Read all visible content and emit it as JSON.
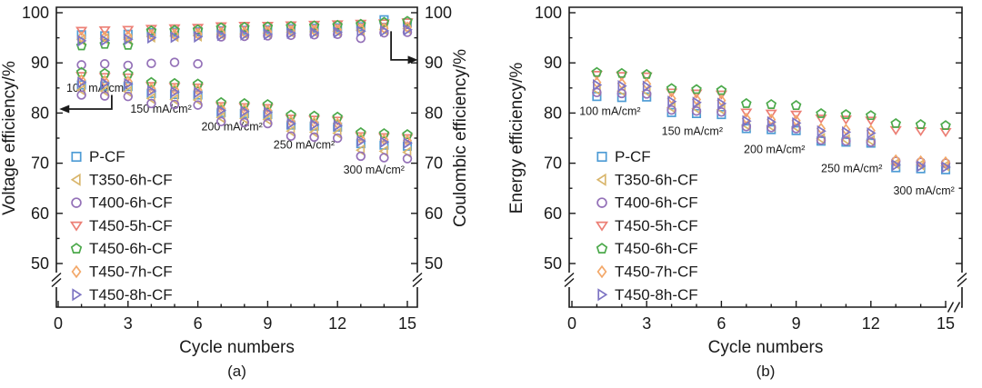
{
  "figure": {
    "background": "#ffffff"
  },
  "chart_data": [
    {
      "type": "scatter",
      "panel": "(a)",
      "xlabel": "Cycle numbers",
      "ylabel_left": "Voltage efficiency/%",
      "ylabel_right": "Coulombic efficiency/%",
      "xlim": [
        0,
        15
      ],
      "ylim": [
        50,
        100
      ],
      "xticks": [
        0,
        3,
        6,
        9,
        12,
        15
      ],
      "yticks": [
        50,
        60,
        70,
        80,
        90,
        100
      ],
      "axis_break_below": 50,
      "grid": false,
      "legend_position": "lower-left-inset",
      "x": [
        1,
        2,
        3,
        4,
        5,
        6,
        7,
        8,
        9,
        10,
        11,
        12,
        13,
        14,
        15
      ],
      "current_density_groups": [
        {
          "label": "100 mA/cm²",
          "cycles": [
            1,
            3
          ]
        },
        {
          "label": "150 mA/cm²",
          "cycles": [
            4,
            6
          ]
        },
        {
          "label": "200 mA/cm²",
          "cycles": [
            7,
            9
          ]
        },
        {
          "label": "250 mA/cm²",
          "cycles": [
            10,
            12
          ]
        },
        {
          "label": "300 mA/cm²",
          "cycles": [
            13,
            15
          ]
        }
      ],
      "annotations": [
        {
          "text": "100 mA/cm²",
          "x": 0.35,
          "y": 84.2
        },
        {
          "text": "150 mA/cm²",
          "x": 3.1,
          "y": 80.1
        },
        {
          "text": "200 mA/cm²",
          "x": 6.15,
          "y": 76.5
        },
        {
          "text": "250 mA/cm²",
          "x": 9.25,
          "y": 72.9
        },
        {
          "text": "300 mA/cm²",
          "x": 12.25,
          "y": 67.9
        }
      ],
      "arrows": [
        {
          "name": "voltage-axis-arrow",
          "points": [
            [
              2.3,
              83.6
            ],
            [
              2.3,
              80.8
            ],
            [
              0.4,
              80.8
            ]
          ]
        },
        {
          "name": "coulombic-axis-arrow",
          "points": [
            [
              14.3,
              96.3
            ],
            [
              14.3,
              90.6
            ],
            [
              15.1,
              90.6
            ]
          ]
        }
      ],
      "series": [
        {
          "name": "P-CF",
          "marker": "square",
          "color": "#4e9cd5",
          "coulombic_efficiency": [
            95.6,
            95.4,
            95.7,
            96.0,
            96.1,
            96.2,
            96.4,
            96.5,
            96.6,
            96.8,
            96.9,
            97.0,
            97.2,
            98.6,
            98.0
          ],
          "voltage_efficiency": [
            85.6,
            85.4,
            85.3,
            83.9,
            83.7,
            83.6,
            80.1,
            79.9,
            79.7,
            77.6,
            77.4,
            77.2,
            73.9,
            73.6,
            73.4
          ]
        },
        {
          "name": "T350-6h-CF",
          "marker": "triangle-left",
          "color": "#d9b66c",
          "coulombic_efficiency": [
            94.6,
            94.8,
            94.7,
            95.2,
            95.3,
            95.4,
            95.7,
            95.8,
            95.9,
            96.1,
            96.2,
            96.3,
            96.5,
            96.6,
            96.8
          ],
          "voltage_efficiency": [
            84.6,
            84.4,
            84.3,
            82.9,
            82.7,
            82.6,
            79.1,
            78.9,
            78.7,
            76.4,
            76.2,
            76.0,
            72.6,
            72.4,
            72.2
          ]
        },
        {
          "name": "T400-6h-CF",
          "marker": "circle",
          "color": "#9471b8",
          "coulombic_efficiency": [
            89.6,
            89.8,
            89.5,
            89.9,
            90.1,
            89.8,
            95.2,
            95.3,
            95.4,
            95.5,
            95.6,
            95.7,
            94.9,
            96.0,
            96.1
          ],
          "voltage_efficiency": [
            83.6,
            83.4,
            83.3,
            81.9,
            81.7,
            81.6,
            78.3,
            78.1,
            77.9,
            75.4,
            75.2,
            75.0,
            71.4,
            71.1,
            70.9
          ]
        },
        {
          "name": "T450-5h-CF",
          "marker": "triangle-down",
          "color": "#ec7f75",
          "coulombic_efficiency": [
            96.4,
            96.5,
            96.6,
            96.8,
            96.9,
            97.0,
            97.3,
            97.4,
            97.4,
            97.5,
            97.6,
            97.7,
            97.8,
            97.9,
            98.1
          ],
          "voltage_efficiency": [
            87.4,
            87.2,
            87.1,
            85.4,
            85.2,
            85.1,
            81.4,
            81.2,
            81.0,
            78.9,
            78.7,
            78.5,
            75.4,
            75.2,
            75.0
          ]
        },
        {
          "name": "T450-6h-CF",
          "marker": "pentagon",
          "color": "#4ca94b",
          "coulombic_efficiency": [
            93.4,
            93.7,
            93.5,
            96.4,
            96.5,
            96.6,
            97.0,
            97.1,
            97.2,
            97.3,
            97.4,
            97.5,
            97.7,
            98.1,
            98.3
          ],
          "voltage_efficiency": [
            88.1,
            87.9,
            87.8,
            86.1,
            85.9,
            85.8,
            82.1,
            81.9,
            81.7,
            79.6,
            79.4,
            79.2,
            76.1,
            75.9,
            75.7
          ]
        },
        {
          "name": "T450-7h-CF",
          "marker": "diamond",
          "color": "#f3a96b",
          "coulombic_efficiency": [
            95.1,
            95.2,
            95.3,
            95.6,
            95.7,
            95.8,
            96.0,
            96.1,
            96.2,
            96.4,
            96.5,
            96.6,
            96.8,
            96.9,
            97.1
          ],
          "voltage_efficiency": [
            86.6,
            86.4,
            86.3,
            84.9,
            84.7,
            84.6,
            80.9,
            80.7,
            80.5,
            78.3,
            78.1,
            77.9,
            74.9,
            74.7,
            74.5
          ]
        },
        {
          "name": "T450-8h-CF",
          "marker": "triangle-right",
          "color": "#7d74c3",
          "coulombic_efficiency": [
            94.4,
            94.5,
            94.7,
            95.0,
            95.1,
            95.2,
            95.5,
            95.6,
            95.7,
            95.9,
            96.0,
            96.1,
            96.3,
            96.4,
            96.6
          ],
          "voltage_efficiency": [
            86.1,
            85.9,
            85.8,
            84.4,
            84.2,
            84.1,
            80.5,
            80.3,
            80.1,
            77.9,
            77.7,
            77.5,
            74.4,
            74.2,
            74.0
          ]
        }
      ]
    },
    {
      "type": "scatter",
      "panel": "(b)",
      "xlabel": "Cycle numbers",
      "ylabel_left": "Energy efficiency/%",
      "xlim": [
        0,
        15
      ],
      "ylim": [
        50,
        100
      ],
      "xticks": [
        0,
        3,
        6,
        9,
        12,
        15
      ],
      "yticks": [
        50,
        60,
        70,
        80,
        90,
        100
      ],
      "axis_break_below": 50,
      "grid": false,
      "legend_position": "lower-left-inset",
      "x": [
        1,
        2,
        3,
        4,
        5,
        6,
        7,
        8,
        9,
        10,
        11,
        12,
        13,
        14,
        15
      ],
      "annotations": [
        {
          "text": "100 mA/cm²",
          "x": 0.3,
          "y": 79.6
        },
        {
          "text": "150 mA/cm²",
          "x": 3.6,
          "y": 75.6
        },
        {
          "text": "200 mA/cm²",
          "x": 6.9,
          "y": 72.0
        },
        {
          "text": "250 mA/cm²",
          "x": 10.0,
          "y": 68.2
        },
        {
          "text": "300 mA/cm²",
          "x": 12.9,
          "y": 63.8
        }
      ],
      "arrows": [],
      "series": [
        {
          "name": "P-CF",
          "marker": "square",
          "color": "#4e9cd5",
          "energy_efficiency": [
            83.3,
            83.1,
            83.2,
            80.1,
            79.9,
            79.7,
            76.9,
            76.7,
            76.5,
            74.4,
            74.2,
            74.0,
            69.1,
            68.9,
            68.7
          ]
        },
        {
          "name": "T350-6h-CF",
          "marker": "triangle-left",
          "color": "#d9b66c",
          "energy_efficiency": [
            84.6,
            84.4,
            84.3,
            81.1,
            80.9,
            80.7,
            77.6,
            77.4,
            77.2,
            74.9,
            74.7,
            74.5,
            69.9,
            69.7,
            69.5
          ]
        },
        {
          "name": "T400-6h-CF",
          "marker": "circle",
          "color": "#9471b8",
          "energy_efficiency": [
            84.1,
            83.9,
            83.8,
            80.6,
            80.4,
            80.2,
            77.3,
            77.1,
            76.9,
            74.6,
            74.4,
            74.2,
            70.4,
            70.2,
            70.0
          ]
        },
        {
          "name": "T450-5h-CF",
          "marker": "triangle-down",
          "color": "#ec7f75",
          "energy_efficiency": [
            87.6,
            87.4,
            87.3,
            84.1,
            83.9,
            83.7,
            80.1,
            79.9,
            79.7,
            78.9,
            78.7,
            78.5,
            76.6,
            76.4,
            76.2
          ]
        },
        {
          "name": "T450-6h-CF",
          "marker": "pentagon",
          "color": "#4ca94b",
          "energy_efficiency": [
            88.1,
            87.9,
            87.7,
            84.9,
            84.7,
            84.5,
            81.9,
            81.7,
            81.5,
            79.9,
            79.7,
            79.5,
            77.9,
            77.7,
            77.5
          ]
        },
        {
          "name": "T450-7h-CF",
          "marker": "diamond",
          "color": "#f3a96b",
          "energy_efficiency": [
            86.1,
            85.9,
            85.8,
            82.9,
            82.7,
            82.5,
            78.9,
            78.7,
            78.5,
            76.9,
            76.7,
            76.5,
            70.6,
            70.4,
            70.2
          ]
        },
        {
          "name": "T450-8h-CF",
          "marker": "triangle-right",
          "color": "#7d74c3",
          "energy_efficiency": [
            85.6,
            85.4,
            85.3,
            82.3,
            82.1,
            81.9,
            78.4,
            78.2,
            78.0,
            76.4,
            76.2,
            76.0,
            69.6,
            69.4,
            69.2
          ]
        }
      ]
    }
  ]
}
